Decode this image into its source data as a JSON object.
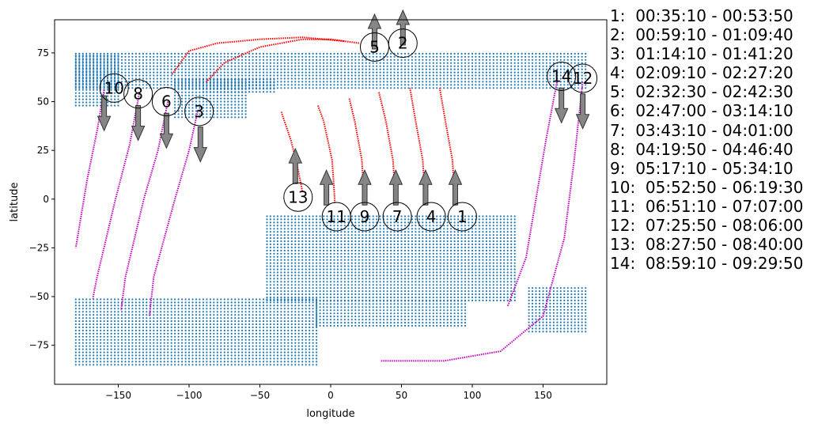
{
  "chart_data": {
    "type": "scatter",
    "title": "",
    "xlabel": "longitude",
    "ylabel": "latitude",
    "xlim": [
      -195,
      195
    ],
    "ylim": [
      -95,
      92
    ],
    "xticks": [
      -150,
      -100,
      -50,
      0,
      50,
      100,
      150
    ],
    "yticks": [
      -75,
      -50,
      -25,
      0,
      25,
      50,
      75
    ],
    "grid": false,
    "land_color": "#1f77b4",
    "ascending_color": "#ff0000",
    "descending_color": "#bf00bf",
    "arrow_color": "#808080",
    "land_regions": [
      {
        "name": "north-band-main",
        "lon": [
          -180,
          180
        ],
        "lat": [
          57,
          75
        ]
      },
      {
        "name": "north-band-west-lobe",
        "lon": [
          -180,
          -148
        ],
        "lat": [
          48,
          75
        ]
      },
      {
        "name": "north-band-south-lobe",
        "lon": [
          -110,
          -60
        ],
        "lat": [
          42,
          62
        ]
      },
      {
        "name": "northern-africa-strip",
        "lon": [
          -90,
          -40
        ],
        "lat": [
          55,
          62
        ]
      },
      {
        "name": "southern-continent",
        "lon": [
          -45,
          130
        ],
        "lat": [
          -52,
          -8
        ]
      },
      {
        "name": "southern-continent-taper",
        "lon": [
          -10,
          95
        ],
        "lat": [
          -65,
          -52
        ]
      },
      {
        "name": "south-band-main",
        "lon": [
          -180,
          -10
        ],
        "lat": [
          -85,
          -50
        ]
      },
      {
        "name": "south-band-east",
        "lon": [
          140,
          180
        ],
        "lat": [
          -68,
          -44
        ]
      }
    ],
    "passes": [
      {
        "id": "1",
        "time": "00:35:10 - 00:53:50",
        "direction": "ascending",
        "label_lon": 93,
        "label_lat": -9,
        "points": [
          [
            88,
            -2
          ],
          [
            86,
            20
          ],
          [
            81,
            40
          ],
          [
            77,
            57
          ]
        ]
      },
      {
        "id": "2",
        "time": "00:59:10 - 01:09:40",
        "direction": "ascending",
        "label_lon": 51,
        "label_lat": 80,
        "points": [
          [
            -88,
            60
          ],
          [
            -75,
            70
          ],
          [
            -50,
            78
          ],
          [
            -20,
            82
          ],
          [
            0,
            82
          ],
          [
            20,
            80
          ]
        ]
      },
      {
        "id": "3",
        "time": "01:14:10 - 01:41:20",
        "direction": "descending",
        "label_lon": -93,
        "label_lat": 45,
        "points": [
          [
            -94,
            45
          ],
          [
            -100,
            25
          ],
          [
            -110,
            0
          ],
          [
            -125,
            -40
          ],
          [
            -128,
            -60
          ]
        ]
      },
      {
        "id": "4",
        "time": "02:09:10 - 02:27:20",
        "direction": "ascending",
        "label_lon": 71,
        "label_lat": -9,
        "points": [
          [
            67,
            -2
          ],
          [
            65,
            20
          ],
          [
            60,
            40
          ],
          [
            56,
            57
          ]
        ]
      },
      {
        "id": "5",
        "time": "02:32:30 - 02:42:30",
        "direction": "ascending",
        "label_lon": 31,
        "label_lat": 78,
        "points": [
          [
            -112,
            64
          ],
          [
            -100,
            76
          ],
          [
            -80,
            80
          ],
          [
            -50,
            82
          ],
          [
            -20,
            83
          ],
          [
            10,
            81
          ]
        ]
      },
      {
        "id": "6",
        "time": "02:47:00 - 03:14:10",
        "direction": "descending",
        "label_lon": -116,
        "label_lat": 50,
        "points": [
          [
            -115,
            50
          ],
          [
            -122,
            25
          ],
          [
            -132,
            0
          ],
          [
            -145,
            -40
          ],
          [
            -148,
            -57
          ]
        ]
      },
      {
        "id": "7",
        "time": "03:43:10 - 04:01:00",
        "direction": "ascending",
        "label_lon": 47,
        "label_lat": -9,
        "points": [
          [
            46,
            -2
          ],
          [
            44,
            20
          ],
          [
            39,
            40
          ],
          [
            34,
            55
          ]
        ]
      },
      {
        "id": "8",
        "time": "04:19:50 - 04:46:40",
        "direction": "descending",
        "label_lon": -136,
        "label_lat": 54,
        "points": [
          [
            -135,
            55
          ],
          [
            -142,
            28
          ],
          [
            -152,
            0
          ],
          [
            -165,
            -40
          ],
          [
            -168,
            -51
          ]
        ]
      },
      {
        "id": "9",
        "time": "05:17:10 - 05:34:10",
        "direction": "ascending",
        "label_lon": 24,
        "label_lat": -9,
        "points": [
          [
            24,
            -2
          ],
          [
            22,
            20
          ],
          [
            17,
            40
          ],
          [
            13,
            52
          ]
        ]
      },
      {
        "id": "10",
        "time": "05:52:50 - 06:19:30",
        "direction": "descending",
        "label_lon": -153,
        "label_lat": 57,
        "points": [
          [
            -160,
            56
          ],
          [
            -165,
            35
          ],
          [
            -172,
            10
          ],
          [
            -180,
            -25
          ]
        ]
      },
      {
        "id": "11",
        "time": "06:51:10 - 07:07:00",
        "direction": "ascending",
        "label_lon": 4,
        "label_lat": -9,
        "points": [
          [
            3,
            -2
          ],
          [
            1,
            20
          ],
          [
            -5,
            40
          ],
          [
            -9,
            48
          ]
        ]
      },
      {
        "id": "12",
        "time": "07:25:50 - 08:06:00",
        "direction": "descending",
        "label_lon": 178,
        "label_lat": 62,
        "points": [
          [
            178,
            60
          ],
          [
            172,
            20
          ],
          [
            165,
            -20
          ],
          [
            150,
            -60
          ],
          [
            120,
            -78
          ],
          [
            80,
            -83
          ],
          [
            35,
            -83
          ]
        ]
      },
      {
        "id": "13",
        "time": "08:27:50 - 08:40:00",
        "direction": "ascending",
        "label_lon": -23,
        "label_lat": 1,
        "points": [
          [
            -20,
            4
          ],
          [
            -23,
            15
          ],
          [
            -28,
            30
          ],
          [
            -35,
            45
          ]
        ]
      },
      {
        "id": "14",
        "time": "08:59:10 - 09:29:50",
        "direction": "descending",
        "label_lon": 163,
        "label_lat": 63,
        "points": [
          [
            160,
            61
          ],
          [
            152,
            30
          ],
          [
            145,
            0
          ],
          [
            138,
            -30
          ],
          [
            125,
            -55
          ]
        ]
      }
    ],
    "arrows": [
      {
        "pass": "1",
        "lon": 88,
        "lat": -3,
        "direction": "up"
      },
      {
        "pass": "4",
        "lon": 67,
        "lat": -3,
        "direction": "up"
      },
      {
        "pass": "7",
        "lon": 46,
        "lat": -3,
        "direction": "up"
      },
      {
        "pass": "9",
        "lon": 24,
        "lat": -3,
        "direction": "up"
      },
      {
        "pass": "11",
        "lon": -3,
        "lat": -3,
        "direction": "up"
      },
      {
        "pass": "13",
        "lon": -25,
        "lat": 8,
        "direction": "up"
      },
      {
        "pass": "5",
        "lon": 31,
        "lat": 77,
        "direction": "up"
      },
      {
        "pass": "2",
        "lon": 51,
        "lat": 79,
        "direction": "up"
      },
      {
        "pass": "10",
        "lon": -160,
        "lat": 53,
        "direction": "down"
      },
      {
        "pass": "8",
        "lon": -136,
        "lat": 48,
        "direction": "down"
      },
      {
        "pass": "6",
        "lon": -116,
        "lat": 44,
        "direction": "down"
      },
      {
        "pass": "3",
        "lon": -92,
        "lat": 37,
        "direction": "down"
      },
      {
        "pass": "14",
        "lon": 163,
        "lat": 57,
        "direction": "down"
      },
      {
        "pass": "12",
        "lon": 178,
        "lat": 54,
        "direction": "down"
      }
    ]
  }
}
